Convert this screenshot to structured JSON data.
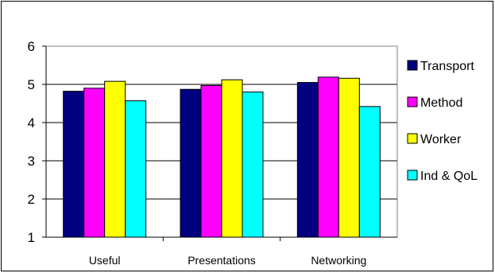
{
  "chart_data": {
    "type": "bar",
    "categories": [
      "Useful",
      "Presentations",
      "Networking"
    ],
    "series": [
      {
        "name": "Transport",
        "color": "#000080",
        "values": [
          4.82,
          4.87,
          5.05
        ]
      },
      {
        "name": "Method",
        "color": "#FF00FF",
        "values": [
          4.9,
          4.97,
          5.19
        ]
      },
      {
        "name": "Worker",
        "color": "#FFFF00",
        "values": [
          5.08,
          5.12,
          5.16
        ]
      },
      {
        "name": "Ind & QoL",
        "color": "#00FFFF",
        "values": [
          4.57,
          4.8,
          4.42
        ]
      }
    ],
    "yticks": [
      1,
      2,
      3,
      4,
      5,
      6
    ],
    "ylim": [
      1,
      6
    ],
    "grid": true,
    "legend_position": "right",
    "title": "",
    "xlabel": "",
    "ylabel": ""
  }
}
